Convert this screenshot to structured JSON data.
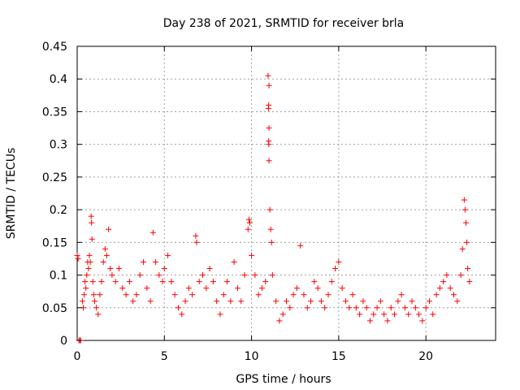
{
  "chart_data": {
    "type": "scatter",
    "title": "Day 238 of 2021, SRMTID for receiver brla",
    "xlabel": "GPS time / hours",
    "ylabel": "SRMTID / TECUs",
    "xlim": [
      0,
      24
    ],
    "ylim": [
      0,
      0.45
    ],
    "grid": true,
    "marker": "plus",
    "color": "#ff0000",
    "x_ticks": [
      0,
      5,
      10,
      15,
      20
    ],
    "y_ticks": [
      0,
      0.05,
      0.1,
      0.15,
      0.2,
      0.25,
      0.3,
      0.35,
      0.4,
      0.45
    ],
    "x_tick_labels": [
      "0",
      "5",
      "10",
      "15",
      "20"
    ],
    "y_tick_labels": [
      "0",
      "0.05",
      "0.1",
      "0.15",
      "0.2",
      "0.25",
      "0.3",
      "0.35",
      "0.4",
      "0.45"
    ],
    "series": [
      {
        "name": "SRMTID",
        "points": [
          [
            0.0,
            0.13
          ],
          [
            0.05,
            0.125
          ],
          [
            0.1,
            0.0
          ],
          [
            0.15,
            0.0
          ],
          [
            0.2,
            0.0
          ],
          [
            0.3,
            0.06
          ],
          [
            0.35,
            0.05
          ],
          [
            0.4,
            0.07
          ],
          [
            0.45,
            0.09
          ],
          [
            0.5,
            0.08
          ],
          [
            0.55,
            0.1
          ],
          [
            0.6,
            0.12
          ],
          [
            0.65,
            0.11
          ],
          [
            0.7,
            0.13
          ],
          [
            0.75,
            0.12
          ],
          [
            0.8,
            0.19
          ],
          [
            0.82,
            0.18
          ],
          [
            0.85,
            0.155
          ],
          [
            0.9,
            0.09
          ],
          [
            0.95,
            0.07
          ],
          [
            1.0,
            0.06
          ],
          [
            1.1,
            0.05
          ],
          [
            1.2,
            0.04
          ],
          [
            1.3,
            0.07
          ],
          [
            1.4,
            0.09
          ],
          [
            1.5,
            0.12
          ],
          [
            1.6,
            0.14
          ],
          [
            1.7,
            0.13
          ],
          [
            1.8,
            0.17
          ],
          [
            1.9,
            0.11
          ],
          [
            2.0,
            0.1
          ],
          [
            2.2,
            0.09
          ],
          [
            2.4,
            0.11
          ],
          [
            2.6,
            0.08
          ],
          [
            2.8,
            0.07
          ],
          [
            3.0,
            0.09
          ],
          [
            3.2,
            0.06
          ],
          [
            3.4,
            0.07
          ],
          [
            3.6,
            0.1
          ],
          [
            3.8,
            0.12
          ],
          [
            4.0,
            0.08
          ],
          [
            4.2,
            0.06
          ],
          [
            4.35,
            0.165
          ],
          [
            4.5,
            0.12
          ],
          [
            4.7,
            0.1
          ],
          [
            4.9,
            0.09
          ],
          [
            5.0,
            0.11
          ],
          [
            5.2,
            0.13
          ],
          [
            5.4,
            0.09
          ],
          [
            5.6,
            0.07
          ],
          [
            5.8,
            0.05
          ],
          [
            6.0,
            0.04
          ],
          [
            6.2,
            0.06
          ],
          [
            6.4,
            0.08
          ],
          [
            6.6,
            0.07
          ],
          [
            6.8,
            0.16
          ],
          [
            6.85,
            0.15
          ],
          [
            7.0,
            0.09
          ],
          [
            7.2,
            0.1
          ],
          [
            7.4,
            0.08
          ],
          [
            7.6,
            0.11
          ],
          [
            7.8,
            0.09
          ],
          [
            8.0,
            0.06
          ],
          [
            8.2,
            0.04
          ],
          [
            8.4,
            0.07
          ],
          [
            8.6,
            0.09
          ],
          [
            8.8,
            0.06
          ],
          [
            9.0,
            0.12
          ],
          [
            9.2,
            0.08
          ],
          [
            9.4,
            0.06
          ],
          [
            9.6,
            0.1
          ],
          [
            9.8,
            0.17
          ],
          [
            9.85,
            0.185
          ],
          [
            9.9,
            0.18
          ],
          [
            10.0,
            0.13
          ],
          [
            10.2,
            0.1
          ],
          [
            10.4,
            0.07
          ],
          [
            10.6,
            0.08
          ],
          [
            10.8,
            0.09
          ],
          [
            10.95,
            0.405
          ],
          [
            11.0,
            0.39
          ],
          [
            10.98,
            0.36
          ],
          [
            10.97,
            0.355
          ],
          [
            11.0,
            0.325
          ],
          [
            10.98,
            0.305
          ],
          [
            10.99,
            0.3
          ],
          [
            11.0,
            0.275
          ],
          [
            11.05,
            0.2
          ],
          [
            11.1,
            0.17
          ],
          [
            11.15,
            0.15
          ],
          [
            11.2,
            0.1
          ],
          [
            11.4,
            0.06
          ],
          [
            11.6,
            0.03
          ],
          [
            11.8,
            0.04
          ],
          [
            12.0,
            0.06
          ],
          [
            12.2,
            0.05
          ],
          [
            12.4,
            0.07
          ],
          [
            12.6,
            0.08
          ],
          [
            12.8,
            0.145
          ],
          [
            13.0,
            0.07
          ],
          [
            13.2,
            0.05
          ],
          [
            13.4,
            0.06
          ],
          [
            13.6,
            0.09
          ],
          [
            13.8,
            0.08
          ],
          [
            14.0,
            0.06
          ],
          [
            14.2,
            0.05
          ],
          [
            14.4,
            0.07
          ],
          [
            14.6,
            0.09
          ],
          [
            14.8,
            0.11
          ],
          [
            15.0,
            0.12
          ],
          [
            15.2,
            0.08
          ],
          [
            15.4,
            0.06
          ],
          [
            15.6,
            0.05
          ],
          [
            15.8,
            0.07
          ],
          [
            16.0,
            0.05
          ],
          [
            16.2,
            0.04
          ],
          [
            16.4,
            0.06
          ],
          [
            16.6,
            0.05
          ],
          [
            16.8,
            0.03
          ],
          [
            17.0,
            0.04
          ],
          [
            17.2,
            0.05
          ],
          [
            17.4,
            0.06
          ],
          [
            17.6,
            0.04
          ],
          [
            17.8,
            0.03
          ],
          [
            18.0,
            0.05
          ],
          [
            18.2,
            0.04
          ],
          [
            18.4,
            0.06
          ],
          [
            18.6,
            0.07
          ],
          [
            18.8,
            0.05
          ],
          [
            19.0,
            0.04
          ],
          [
            19.2,
            0.06
          ],
          [
            19.4,
            0.05
          ],
          [
            19.6,
            0.04
          ],
          [
            19.8,
            0.03
          ],
          [
            20.0,
            0.05
          ],
          [
            20.2,
            0.06
          ],
          [
            20.4,
            0.04
          ],
          [
            20.6,
            0.07
          ],
          [
            20.8,
            0.08
          ],
          [
            21.0,
            0.09
          ],
          [
            21.2,
            0.1
          ],
          [
            21.4,
            0.08
          ],
          [
            21.6,
            0.07
          ],
          [
            21.8,
            0.06
          ],
          [
            22.0,
            0.1
          ],
          [
            22.1,
            0.14
          ],
          [
            22.2,
            0.215
          ],
          [
            22.25,
            0.2
          ],
          [
            22.3,
            0.18
          ],
          [
            22.35,
            0.15
          ],
          [
            22.4,
            0.11
          ],
          [
            22.5,
            0.09
          ]
        ]
      }
    ]
  }
}
